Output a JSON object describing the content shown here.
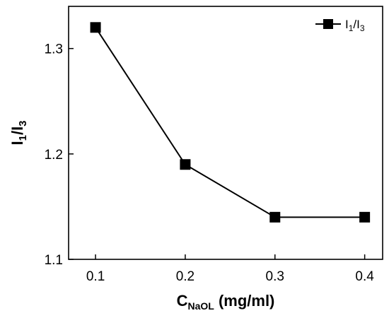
{
  "chart_data": {
    "type": "line",
    "x": [
      0.1,
      0.2,
      0.3,
      0.4
    ],
    "series": [
      {
        "name": "I1/I3",
        "values": [
          1.32,
          1.19,
          1.14,
          1.14
        ],
        "marker": "square",
        "color": "#000000"
      }
    ],
    "xlabel": {
      "main": "C",
      "sub": "NaOL",
      "rest": " (mg/ml)"
    },
    "ylabel": {
      "p1": "I",
      "s1": "1",
      "p2": "/I",
      "s2": "3"
    },
    "legend": {
      "p1": "I",
      "s1": "1",
      "p2": "/I",
      "s2": "3",
      "placement": "top-right"
    },
    "xlim": [
      0.07,
      0.42
    ],
    "ylim": [
      1.1,
      1.34
    ],
    "xticks": [
      {
        "value": 0.1,
        "label": "0.1"
      },
      {
        "value": 0.2,
        "label": "0.2"
      },
      {
        "value": 0.3,
        "label": "0.3"
      },
      {
        "value": 0.4,
        "label": "0.4"
      }
    ],
    "yticks": [
      {
        "value": 1.1,
        "label": "1.1"
      },
      {
        "value": 1.2,
        "label": "1.2"
      },
      {
        "value": 1.3,
        "label": "1.3"
      }
    ],
    "grid": false
  }
}
